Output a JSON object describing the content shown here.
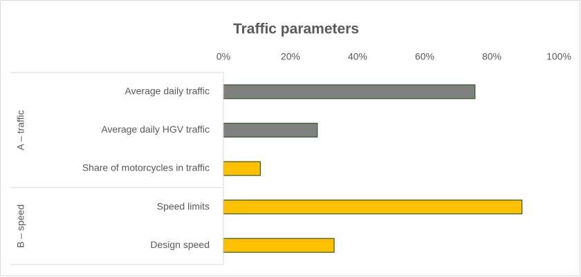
{
  "chart_data": {
    "type": "bar",
    "orientation": "horizontal",
    "title": "Traffic parameters",
    "groups": [
      {
        "name": "A – traffic",
        "categories": [
          "Average daily traffic",
          "Average daily HGV traffic",
          "Share of motorcycles in traffic"
        ],
        "values": [
          75,
          28,
          11
        ],
        "colors": [
          "#808080",
          "#808080",
          "#ffc000"
        ]
      },
      {
        "name": "B – speed",
        "categories": [
          "Speed limits",
          "Design speed"
        ],
        "values": [
          89,
          33
        ],
        "colors": [
          "#ffc000",
          "#ffc000"
        ]
      }
    ],
    "xlim": [
      0,
      100
    ],
    "xticks": [
      {
        "value": 0,
        "label": "0%"
      },
      {
        "value": 20,
        "label": "20%"
      },
      {
        "value": 40,
        "label": "40%"
      },
      {
        "value": 60,
        "label": "60%"
      },
      {
        "value": 80,
        "label": "80%"
      },
      {
        "value": 100,
        "label": "100%"
      }
    ],
    "grid": false,
    "bar_border_color": "#375623"
  }
}
